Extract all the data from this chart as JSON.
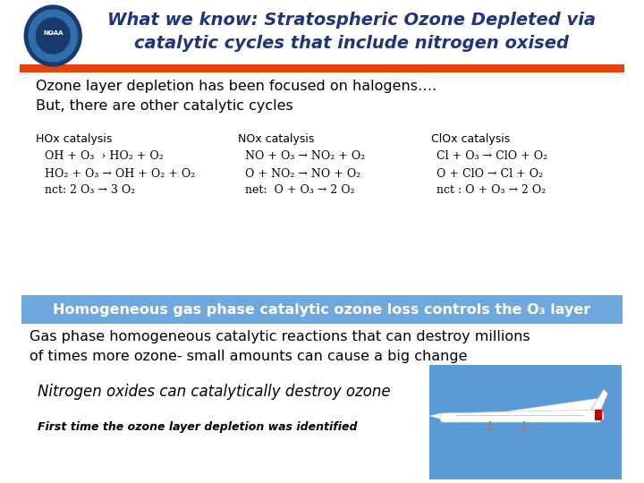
{
  "title_line1": "What we know: Stratospheric Ozone Depleted via",
  "title_line2": "catalytic cycles that include nitrogen oxised",
  "title_color": "#1F3480",
  "red_bar_color": "#E8430A",
  "bg_color": "#FFFFFF",
  "text1": "Ozone layer depletion has been focused on halogens….",
  "text2": "But, there are other catalytic cycles",
  "hox_label": "HOx catalysis",
  "nox_label": "NOx catalysis",
  "clox_label": "ClOx catalysis",
  "hox_eq1": "OH + O₃  › HO₂ + O₂",
  "hox_eq2": "HO₂ + O₃ → OH + O₂ + O₂",
  "hox_eq3": "nct: 2 O₃ → 3 O₂",
  "nox_eq1": "NO + O₃ → NO₂ + O₂",
  "nox_eq2": "O + NO₂ → NO + O₂",
  "nox_eq3": "net:  O + O₃ → 2 O₂",
  "clox_eq1": "Cl + O₃ → ClO + O₂",
  "clox_eq2": "O + ClO → Cl + O₂",
  "clox_eq3": "nct : O + O₃ → 2 O₂",
  "banner_text": "Homogeneous gas phase catalytic ozone loss controls the O₃ layer",
  "banner_bg": "#6FA8DC",
  "banner_text_color": "#FFFFFF",
  "body_text1": "Gas phase homogeneous catalytic reactions that can destroy millions",
  "body_text2": "of times more ozone- small amounts can cause a big change",
  "italic_text": "Nitrogen oxides can catalytically destroy ozone",
  "small_text": "First time the ozone layer depletion was identified"
}
